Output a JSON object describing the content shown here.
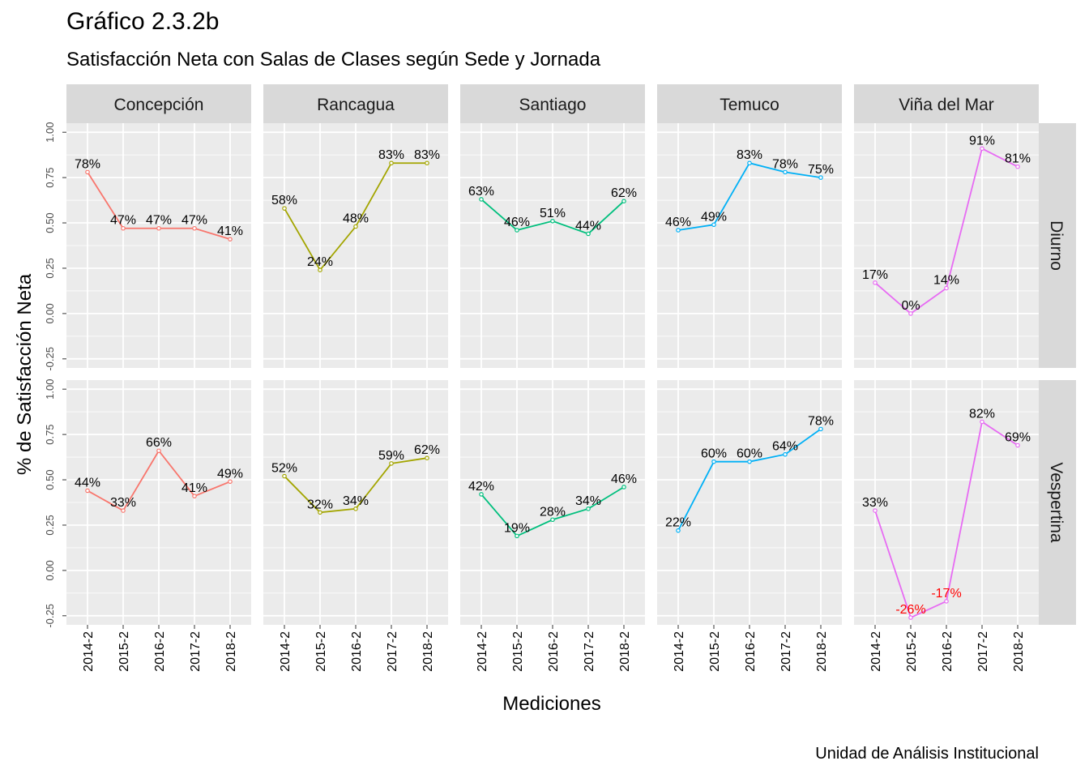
{
  "title": "Gráfico 2.3.2b",
  "subtitle": "Satisfacción Neta con Salas de Clases según Sede y Jornada",
  "caption": "Unidad de Análisis Institucional",
  "colors": {
    "panel_bg": "#ebebeb",
    "strip_bg": "#d9d9d9",
    "grid": "#ffffff",
    "negative_label": "#ff0000"
  },
  "chart_data": {
    "type": "line",
    "xlabel": "Mediciones",
    "ylabel": "% de Satisfacción Neta",
    "ylim": [
      -0.3,
      1.05
    ],
    "yticks": [
      -0.25,
      0,
      0.25,
      0.5,
      0.75,
      1
    ],
    "ytick_labels": [
      "-0.25",
      "0.00",
      "0.25",
      "0.50",
      "0.75",
      "1.00"
    ],
    "categories": [
      "2014-2",
      "2015-2",
      "2016-2",
      "2017-2",
      "2018-2"
    ],
    "columns": [
      "Concepción",
      "Rancagua",
      "Santiago",
      "Temuco",
      "Viña del Mar"
    ],
    "rows": [
      "Diurno",
      "Vespertina"
    ],
    "column_colors": [
      "#f8766d",
      "#a3a500",
      "#00bf7d",
      "#00b0f6",
      "#e76bf3"
    ],
    "grid": true,
    "legend": "none",
    "series": [
      {
        "column": "Concepción",
        "row": "Diurno",
        "values": [
          0.78,
          0.47,
          0.47,
          0.47,
          0.41
        ],
        "labels": [
          "78%",
          "47%",
          "47%",
          "47%",
          "41%"
        ]
      },
      {
        "column": "Rancagua",
        "row": "Diurno",
        "values": [
          0.58,
          0.24,
          0.48,
          0.83,
          0.83
        ],
        "labels": [
          "58%",
          "24%",
          "48%",
          "83%",
          "83%"
        ]
      },
      {
        "column": "Santiago",
        "row": "Diurno",
        "values": [
          0.63,
          0.46,
          0.51,
          0.44,
          0.62
        ],
        "labels": [
          "63%",
          "46%",
          "51%",
          "44%",
          "62%"
        ]
      },
      {
        "column": "Temuco",
        "row": "Diurno",
        "values": [
          0.46,
          0.49,
          0.83,
          0.78,
          0.75
        ],
        "labels": [
          "46%",
          "49%",
          "83%",
          "78%",
          "75%"
        ]
      },
      {
        "column": "Viña del Mar",
        "row": "Diurno",
        "values": [
          0.17,
          0.0,
          0.14,
          0.91,
          0.81
        ],
        "labels": [
          "17%",
          "0%",
          "14%",
          "91%",
          "81%"
        ]
      },
      {
        "column": "Concepción",
        "row": "Vespertina",
        "values": [
          0.44,
          0.33,
          0.66,
          0.41,
          0.49
        ],
        "labels": [
          "44%",
          "33%",
          "66%",
          "41%",
          "49%"
        ]
      },
      {
        "column": "Rancagua",
        "row": "Vespertina",
        "values": [
          0.52,
          0.32,
          0.34,
          0.59,
          0.62
        ],
        "labels": [
          "52%",
          "32%",
          "34%",
          "59%",
          "62%"
        ]
      },
      {
        "column": "Santiago",
        "row": "Vespertina",
        "values": [
          0.42,
          0.19,
          0.28,
          0.34,
          0.46
        ],
        "labels": [
          "42%",
          "19%",
          "28%",
          "34%",
          "46%"
        ]
      },
      {
        "column": "Temuco",
        "row": "Vespertina",
        "values": [
          0.22,
          0.6,
          0.6,
          0.64,
          0.78
        ],
        "labels": [
          "22%",
          "60%",
          "60%",
          "64%",
          "78%"
        ]
      },
      {
        "column": "Viña del Mar",
        "row": "Vespertina",
        "values": [
          0.33,
          -0.26,
          -0.17,
          0.82,
          0.69
        ],
        "labels": [
          "33%",
          "-26%",
          "-17%",
          "82%",
          "69%"
        ]
      }
    ]
  }
}
